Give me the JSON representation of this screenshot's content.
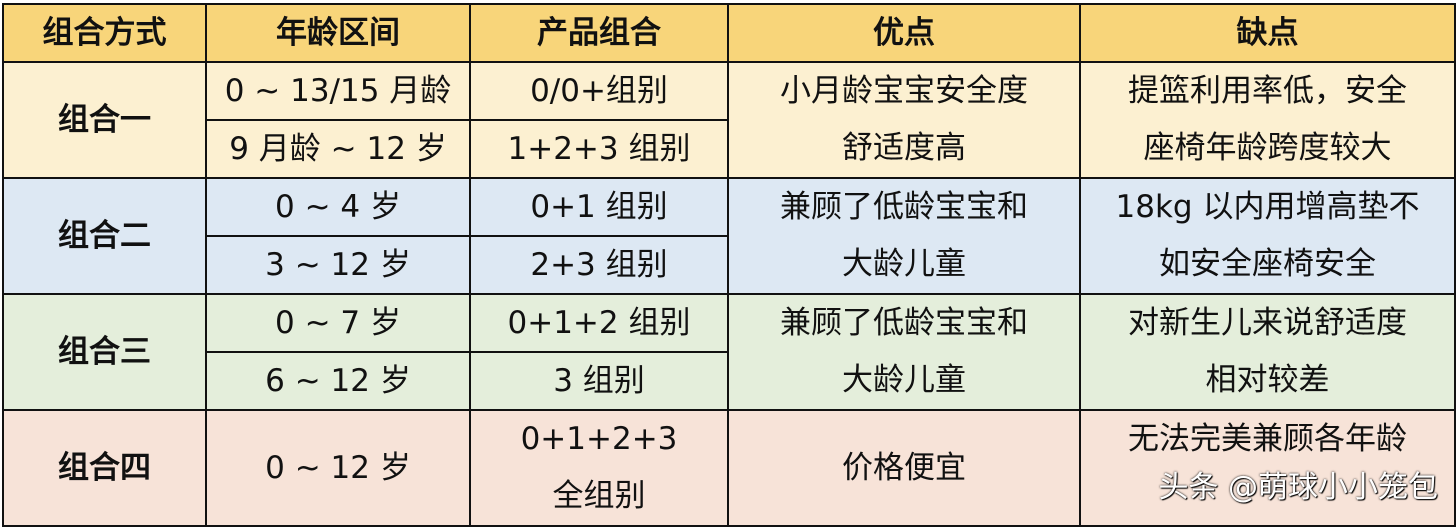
{
  "headers": [
    "组合方式",
    "年龄区间",
    "产品组合",
    "优点",
    "缺点"
  ],
  "groups": [
    {
      "name": "组合一",
      "rows": [
        {
          "age": "0 ~ 13/15 月龄",
          "product": "0/0+组别"
        },
        {
          "age": "9 月龄 ~ 12 岁",
          "product": "1+2+3 组别"
        }
      ],
      "pros": [
        "小月龄宝宝安全度",
        "舒适度高"
      ],
      "cons": [
        "提篮利用率低，安全",
        "座椅年龄跨度较大"
      ],
      "color": "#fcf0d1"
    },
    {
      "name": "组合二",
      "rows": [
        {
          "age": "0 ~ 4 岁",
          "product": "0+1 组别"
        },
        {
          "age": "3 ~ 12 岁",
          "product": "2+3 组别"
        }
      ],
      "pros": [
        "兼顾了低龄宝宝和",
        "大龄儿童"
      ],
      "cons": [
        "18kg 以内用增高垫不",
        "如安全座椅安全"
      ],
      "color": "#dde8f3"
    },
    {
      "name": "组合三",
      "rows": [
        {
          "age": "0 ~ 7 岁",
          "product": "0+1+2 组别"
        },
        {
          "age": "6 ~ 12 岁",
          "product": "3 组别"
        }
      ],
      "pros": [
        "兼顾了低龄宝宝和",
        "大龄儿童"
      ],
      "cons": [
        "对新生儿来说舒适度",
        "相对较差"
      ],
      "color": "#e4eedb"
    },
    {
      "name": "组合四",
      "age": "0 ~ 12 岁",
      "product": [
        "0+1+2+3",
        "全组别"
      ],
      "pros": "价格便宜",
      "cons": [
        "无法完美兼顾各年龄"
      ],
      "color": "#f7e3d8"
    }
  ],
  "watermark": "头条 @萌球小小笼包"
}
